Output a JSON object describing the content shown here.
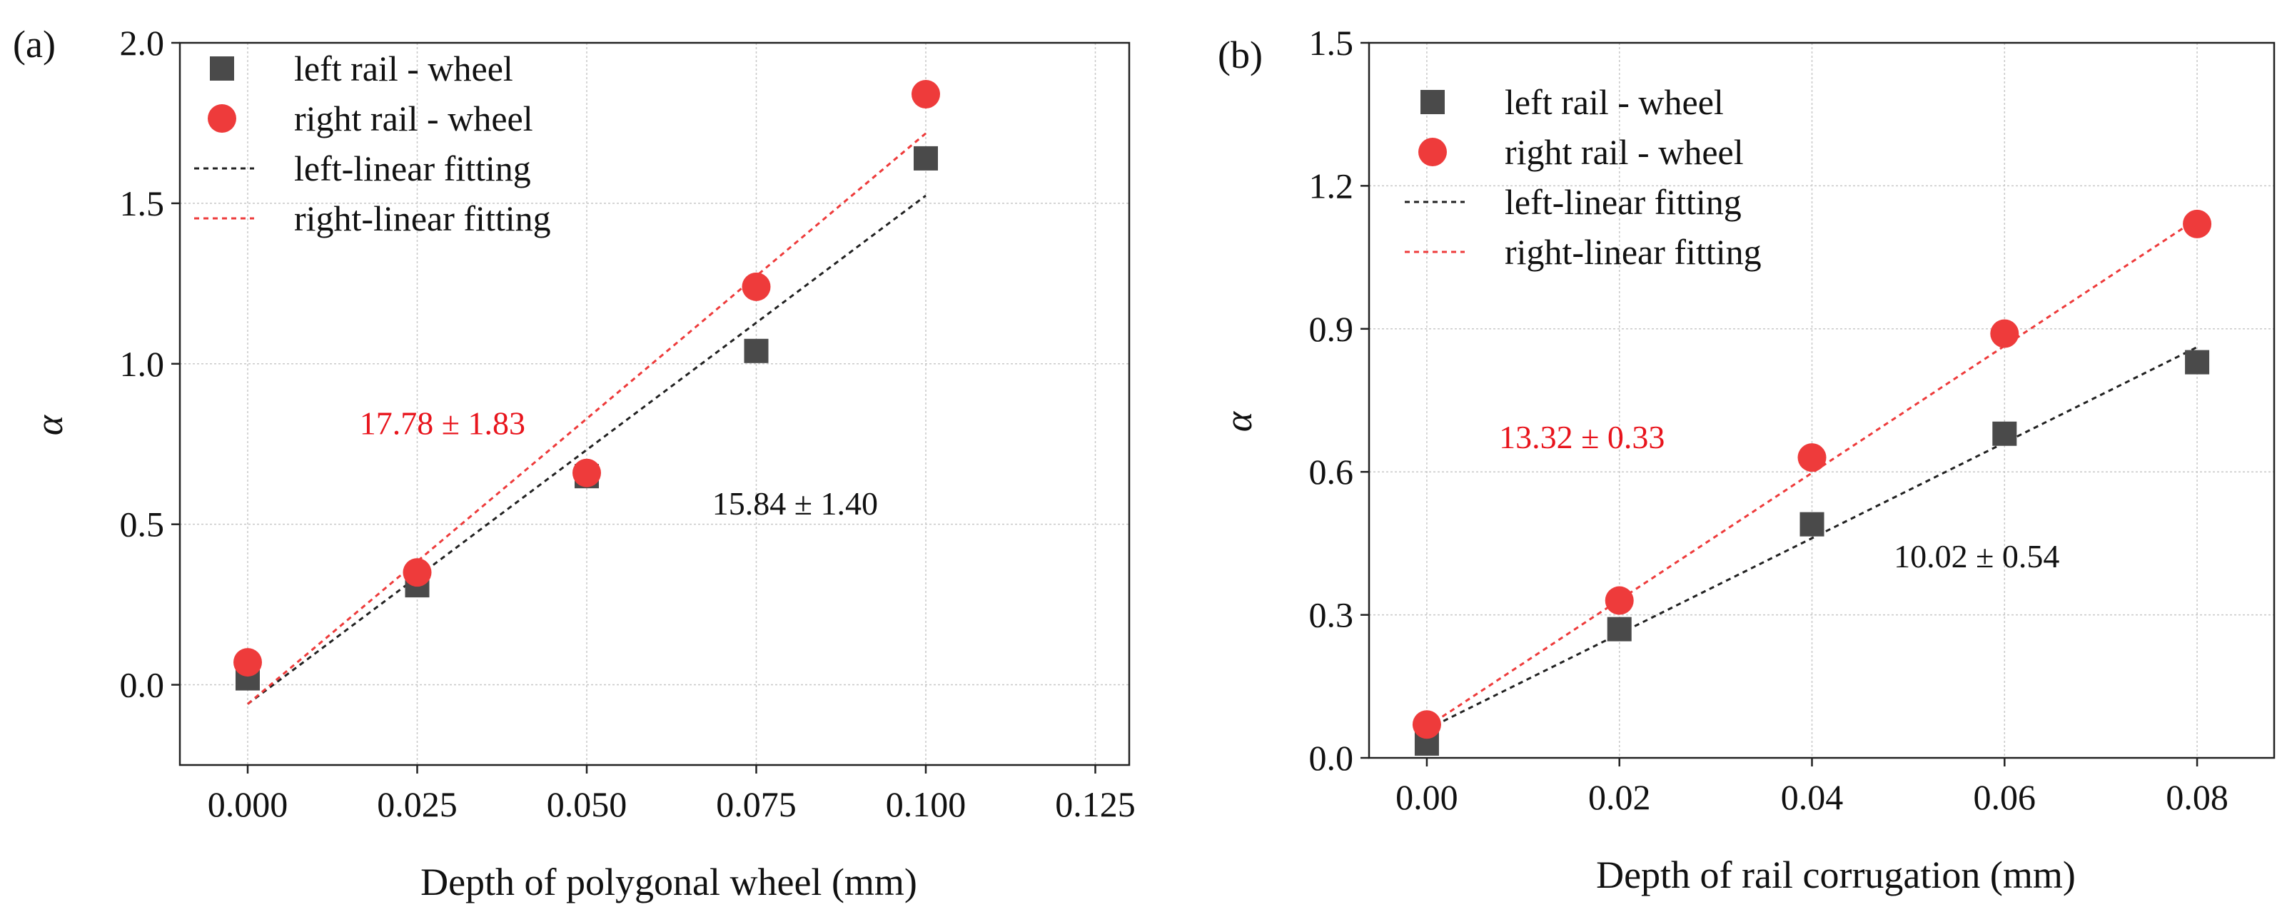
{
  "chart_data": [
    {
      "type": "scatter",
      "panel_label": "(a)",
      "xlabel": "Depth of polygonal wheel (mm)",
      "ylabel": "α",
      "xlim": [
        -0.01,
        0.13
      ],
      "ylim": [
        -0.25,
        2.0
      ],
      "xticks": [
        0.0,
        0.025,
        0.05,
        0.075,
        0.1,
        0.125
      ],
      "xtick_labels": [
        "0.000",
        "0.025",
        "0.050",
        "0.075",
        "0.100",
        "0.125"
      ],
      "yticks": [
        0.0,
        0.5,
        1.0,
        1.5,
        2.0
      ],
      "ytick_labels": [
        "0.0",
        "0.5",
        "1.0",
        "1.5",
        "2.0"
      ],
      "grid": true,
      "legend_position": "top-left",
      "legend": [
        "left rail - wheel",
        "right rail - wheel",
        "left-linear fitting",
        "right-linear fitting"
      ],
      "series": [
        {
          "name": "left rail - wheel",
          "marker": "square",
          "color": "#4a4a4a",
          "x": [
            0.0,
            0.025,
            0.05,
            0.075,
            0.1
          ],
          "y": [
            0.02,
            0.31,
            0.65,
            1.04,
            1.64
          ]
        },
        {
          "name": "right rail - wheel",
          "marker": "circle",
          "color": "#ee3b3b",
          "x": [
            0.0,
            0.025,
            0.05,
            0.075,
            0.1
          ],
          "y": [
            0.07,
            0.35,
            0.66,
            1.24,
            1.84
          ]
        }
      ],
      "fits": [
        {
          "name": "left-linear fitting",
          "color": "#222222",
          "slope": 15.84,
          "intercept": -0.06,
          "x_range": [
            0.0,
            0.1
          ]
        },
        {
          "name": "right-linear fitting",
          "color": "#ee3b3b",
          "slope": 17.78,
          "intercept": -0.06,
          "x_range": [
            0.0,
            0.1
          ]
        }
      ],
      "annotations": [
        {
          "text": "17.78 ± 1.83",
          "color": "#e8141c",
          "x": 0.0165,
          "y": 0.78
        },
        {
          "text": "15.84 ± 1.40",
          "color": "#111111",
          "x": 0.0685,
          "y": 0.53
        }
      ]
    },
    {
      "type": "scatter",
      "panel_label": "(b)",
      "xlabel": "Depth of rail corrugation (mm)",
      "ylabel": "α",
      "xlim": [
        -0.006,
        0.088
      ],
      "ylim": [
        0.0,
        1.5
      ],
      "xticks": [
        0.0,
        0.02,
        0.04,
        0.06,
        0.08
      ],
      "xtick_labels": [
        "0.00",
        "0.02",
        "0.04",
        "0.06",
        "0.08"
      ],
      "yticks": [
        0.0,
        0.3,
        0.6,
        0.9,
        1.2,
        1.5
      ],
      "ytick_labels": [
        "0.0",
        "0.3",
        "0.6",
        "0.9",
        "1.2",
        "1.5"
      ],
      "grid": true,
      "legend_position": "top-left",
      "legend": [
        "left rail - wheel",
        "right rail - wheel",
        "left-linear fitting",
        "right-linear fitting"
      ],
      "series": [
        {
          "name": "left rail - wheel",
          "marker": "square",
          "color": "#4a4a4a",
          "x": [
            0.0,
            0.02,
            0.04,
            0.06,
            0.08
          ],
          "y": [
            0.03,
            0.27,
            0.49,
            0.68,
            0.83
          ]
        },
        {
          "name": "right rail - wheel",
          "marker": "circle",
          "color": "#ee3b3b",
          "x": [
            0.0,
            0.02,
            0.04,
            0.06,
            0.08
          ],
          "y": [
            0.07,
            0.33,
            0.63,
            0.89,
            1.12
          ]
        }
      ],
      "fits": [
        {
          "name": "left-linear fitting",
          "color": "#222222",
          "slope": 10.02,
          "intercept": 0.06,
          "x_range": [
            0.0,
            0.08
          ]
        },
        {
          "name": "right-linear fitting",
          "color": "#ee3b3b",
          "slope": 13.32,
          "intercept": 0.065,
          "x_range": [
            0.0,
            0.08
          ]
        }
      ],
      "annotations": [
        {
          "text": "13.32 ± 0.33",
          "color": "#e8141c",
          "x": 0.0075,
          "y": 0.65
        },
        {
          "text": "10.02 ± 0.54",
          "color": "#111111",
          "x": 0.0485,
          "y": 0.4
        }
      ]
    }
  ]
}
